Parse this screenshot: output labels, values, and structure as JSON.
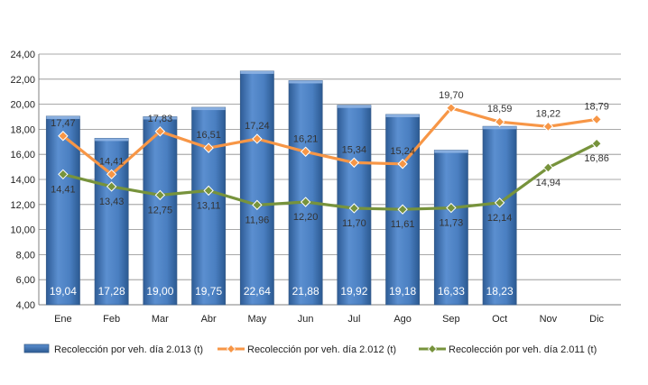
{
  "chart_data": {
    "type": "bar",
    "categories": [
      "Ene",
      "Feb",
      "Mar",
      "Abr",
      "May",
      "Jun",
      "Jul",
      "Ago",
      "Sep",
      "Oct",
      "Nov",
      "Dic"
    ],
    "ylim": [
      4,
      24
    ],
    "yticks": [
      "4,00",
      "6,00",
      "8,00",
      "10,00",
      "12,00",
      "14,00",
      "16,00",
      "18,00",
      "20,00",
      "22,00",
      "24,00"
    ],
    "grid": true,
    "legend_position": "bottom",
    "series": [
      {
        "name": "Recolección por veh. día 2.013 (t)",
        "kind": "bar",
        "color": "#4f81bd",
        "values": [
          19.04,
          17.28,
          19.0,
          19.75,
          22.64,
          21.88,
          19.92,
          19.18,
          16.33,
          18.23,
          null,
          null
        ],
        "labels": [
          "19,04",
          "17,28",
          "19,00",
          "19,75",
          "22,64",
          "21,88",
          "19,92",
          "19,18",
          "16,33",
          "18,23",
          "",
          ""
        ]
      },
      {
        "name": "Recolección por veh. día 2.012 (t)",
        "kind": "line",
        "color": "#f79646",
        "values": [
          17.47,
          14.41,
          17.83,
          16.51,
          17.24,
          16.21,
          15.34,
          15.24,
          19.7,
          18.59,
          18.22,
          18.79
        ],
        "labels": [
          "17,47",
          "14,41",
          "17,83",
          "16,51",
          "17,24",
          "16,21",
          "15,34",
          "15,24",
          "19,70",
          "18,59",
          "18,22",
          "18,79"
        ]
      },
      {
        "name": "Recolección por veh. día 2.011 (t)",
        "kind": "line",
        "color": "#77933c",
        "values": [
          14.41,
          13.43,
          12.75,
          13.11,
          11.96,
          12.2,
          11.7,
          11.61,
          11.73,
          12.14,
          14.94,
          16.86
        ],
        "labels": [
          "14,41",
          "13,43",
          "12,75",
          "13,11",
          "11,96",
          "12,20",
          "11,70",
          "11,61",
          "11,73",
          "12,14",
          "14,94",
          "16,86"
        ]
      }
    ]
  }
}
